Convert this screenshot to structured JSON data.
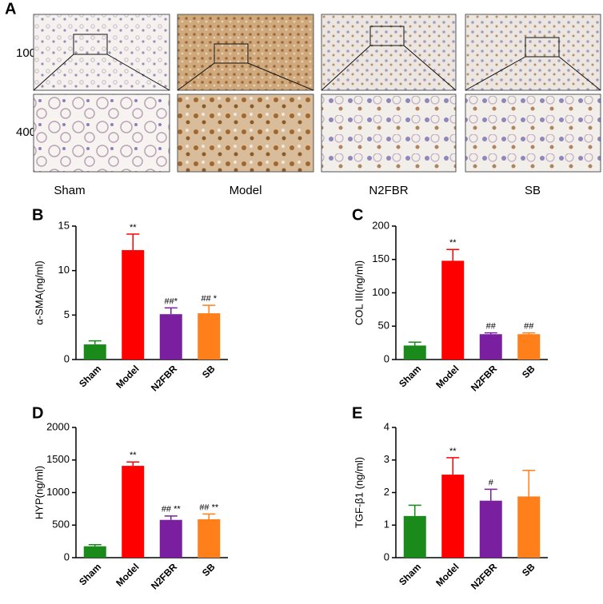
{
  "panel_a": {
    "label": "A",
    "magnifications": [
      "100×",
      "400×"
    ],
    "groups": [
      "Sham",
      "Model",
      "N2FBR",
      "SB"
    ]
  },
  "chart_data": [
    {
      "type": "bar",
      "panel": "B",
      "ylabel": "α-SMA(ng/ml)",
      "categories": [
        "Sham",
        "Model",
        "N2FBR",
        "SB"
      ],
      "values": [
        1.7,
        12.3,
        5.1,
        5.2
      ],
      "errors": [
        0.4,
        1.8,
        0.7,
        0.9
      ],
      "annotations": [
        null,
        "**",
        "##*",
        "## *"
      ],
      "colors": [
        "#1a8a1a",
        "#ff0000",
        "#7a1fa0",
        "#ff7f1a"
      ],
      "ylim": [
        0,
        15
      ],
      "yticks": [
        0,
        5,
        10,
        15
      ]
    },
    {
      "type": "bar",
      "panel": "C",
      "ylabel": "COL III(ng/ml)",
      "categories": [
        "Sham",
        "Model",
        "N2FBR",
        "SB"
      ],
      "values": [
        21,
        148,
        38,
        38
      ],
      "errors": [
        5,
        17,
        2,
        2
      ],
      "annotations": [
        null,
        "**",
        "##",
        "##"
      ],
      "colors": [
        "#1a8a1a",
        "#ff0000",
        "#7a1fa0",
        "#ff7f1a"
      ],
      "ylim": [
        0,
        200
      ],
      "yticks": [
        0,
        50,
        100,
        150,
        200
      ]
    },
    {
      "type": "bar",
      "panel": "D",
      "ylabel": "HYP(ng/ml)",
      "categories": [
        "Sham",
        "Model",
        "N2FBR",
        "SB"
      ],
      "values": [
        175,
        1410,
        580,
        590
      ],
      "errors": [
        25,
        60,
        60,
        80
      ],
      "annotations": [
        null,
        "**",
        "## **",
        "## **"
      ],
      "colors": [
        "#1a8a1a",
        "#ff0000",
        "#7a1fa0",
        "#ff7f1a"
      ],
      "ylim": [
        0,
        2000
      ],
      "yticks": [
        0,
        500,
        1000,
        1500,
        2000
      ]
    },
    {
      "type": "bar",
      "panel": "E",
      "ylabel": "TGF-β1 (ng/ml)",
      "categories": [
        "Sham",
        "Model",
        "N2FBR",
        "SB"
      ],
      "values": [
        1.28,
        2.55,
        1.75,
        1.88
      ],
      "errors": [
        0.33,
        0.52,
        0.35,
        0.8
      ],
      "annotations": [
        null,
        "**",
        "#",
        null
      ],
      "colors": [
        "#1a8a1a",
        "#ff0000",
        "#7a1fa0",
        "#ff7f1a"
      ],
      "ylim": [
        0,
        4
      ],
      "yticks": [
        0,
        1,
        2,
        3,
        4
      ]
    }
  ]
}
